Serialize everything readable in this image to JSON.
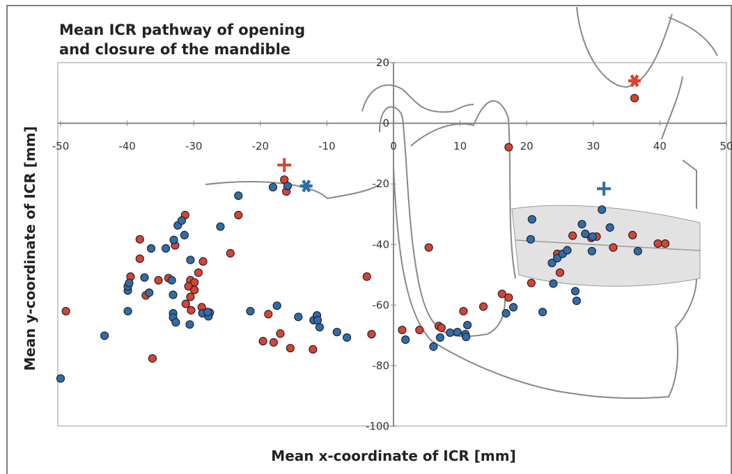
{
  "chart_data": {
    "type": "scatter",
    "title": [
      "Mean ICR pathway of opening",
      "and closure of the mandible"
    ],
    "x_label": "Mean x-coordinate of ICR [mm]",
    "y_label": "Mean y-coordinate of ICR [mm]",
    "xlim": [
      -50,
      50
    ],
    "ylim": [
      -100,
      20
    ],
    "xticks": [
      -50,
      -40,
      -30,
      -20,
      -10,
      0,
      10,
      20,
      30,
      40,
      50
    ],
    "yticks": [
      -100,
      -80,
      -60,
      -40,
      -20,
      0,
      20
    ],
    "series": [
      {
        "color": "#d9432f",
        "marker": "circle",
        "x": [
          -49.2,
          -36.2,
          -38.1,
          -38.1,
          -39.5,
          -37.2,
          -35.3,
          -33.8,
          -32.8,
          -31.3,
          -30.5,
          -29.9,
          -30.8,
          -29.9,
          -30.5,
          -31.2,
          -30.4,
          -29.3,
          -28.6,
          -28.8,
          -27.6,
          -24.5,
          -23.3,
          -18.8,
          -19.6,
          -18,
          -17,
          -15.5,
          -12.1,
          -16.4,
          -16.1,
          -4,
          -3.3,
          1.3,
          3.9,
          5.3,
          6.8,
          7.2,
          10.5,
          13.5,
          16.3,
          17.3,
          17.3,
          20.7,
          24.6,
          25,
          26.9,
          29.7,
          30.5,
          33,
          35.9,
          39.7,
          40.8,
          36.2
        ],
        "y": [
          -62,
          -77.6,
          -38.3,
          -44.7,
          -50.6,
          -56.8,
          -51.8,
          -51.1,
          -40.3,
          -30.3,
          -51.8,
          -52.5,
          -53.8,
          -55,
          -57.3,
          -59.6,
          -61.7,
          -49.3,
          -45.6,
          -60.7,
          -62.5,
          -42.9,
          -30.3,
          -63,
          -71.9,
          -72.3,
          -69.4,
          -74.2,
          -74.6,
          -18.6,
          -22.5,
          -50.6,
          -69.6,
          -68.2,
          -68.2,
          -41,
          -66.9,
          -67.5,
          -62,
          -60.5,
          -56.3,
          -57.5,
          -7.9,
          -52.7,
          -43.1,
          -49.3,
          -37.1,
          -37.8,
          -37.4,
          -41,
          -36.9,
          -39.7,
          -39.7,
          8.3
        ]
      },
      {
        "color": "#2f6da8",
        "marker": "circle",
        "x": [
          -50,
          -43.4,
          -39.9,
          -39.9,
          -39.9,
          -39.7,
          -37.4,
          -36.4,
          -36.7,
          -34.2,
          -33.3,
          -33,
          -32.4,
          -31.8,
          -31.4,
          -33.1,
          -33.1,
          -33.1,
          -32.7,
          -30.5,
          -30.6,
          -28.7,
          -27.8,
          -27.9,
          -26,
          -23.3,
          -21.5,
          -17.5,
          -18.1,
          -15.9,
          -14.3,
          -12,
          -11.5,
          -11.4,
          -11.1,
          -8.5,
          -7,
          1.8,
          6,
          7,
          8.5,
          9.6,
          10.8,
          10.9,
          11.1,
          16.9,
          18,
          20.8,
          20.6,
          22.4,
          24,
          23.8,
          24.6,
          25.4,
          26.1,
          27.3,
          27.5,
          28.3,
          28.8,
          29.9,
          29.8,
          31.3,
          32.5,
          36.7
        ],
        "y": [
          -84.2,
          -70.1,
          -62,
          -55.2,
          -53.8,
          -52.7,
          -50.9,
          -41.3,
          -55.9,
          -41.3,
          -51.8,
          -38.5,
          -33.7,
          -32.1,
          -36.9,
          -56.6,
          -62.7,
          -64.1,
          -65.7,
          -45.1,
          -66.4,
          -62.7,
          -63.7,
          -62.3,
          -34.1,
          -23.9,
          -62,
          -60.2,
          -21.1,
          -20.7,
          -63.9,
          -65,
          -63.4,
          -65,
          -67.3,
          -68.9,
          -70.7,
          -71.4,
          -73.7,
          -70.7,
          -69.1,
          -68.9,
          -69.6,
          -70.5,
          -66.6,
          -62.7,
          -60.7,
          -31.7,
          -38.3,
          -62.3,
          -52.9,
          -46.1,
          -44.5,
          -43.1,
          -41.9,
          -55.4,
          -58.6,
          -33.3,
          -36.5,
          -37.4,
          -42.2,
          -28.5,
          -34.4,
          -42.2
        ]
      },
      {
        "color": "#d9432f",
        "marker": "plus",
        "x": [
          -16.4
        ],
        "y": [
          -13.8
        ]
      },
      {
        "color": "#d9432f",
        "marker": "star",
        "x": [
          36.2
        ],
        "y": [
          14
        ]
      },
      {
        "color": "#2f6da8",
        "marker": "star",
        "x": [
          -13.1
        ],
        "y": [
          -20.7
        ]
      },
      {
        "color": "#2f6da8",
        "marker": "plus",
        "x": [
          31.6
        ],
        "y": [
          -21.6
        ]
      }
    ]
  }
}
